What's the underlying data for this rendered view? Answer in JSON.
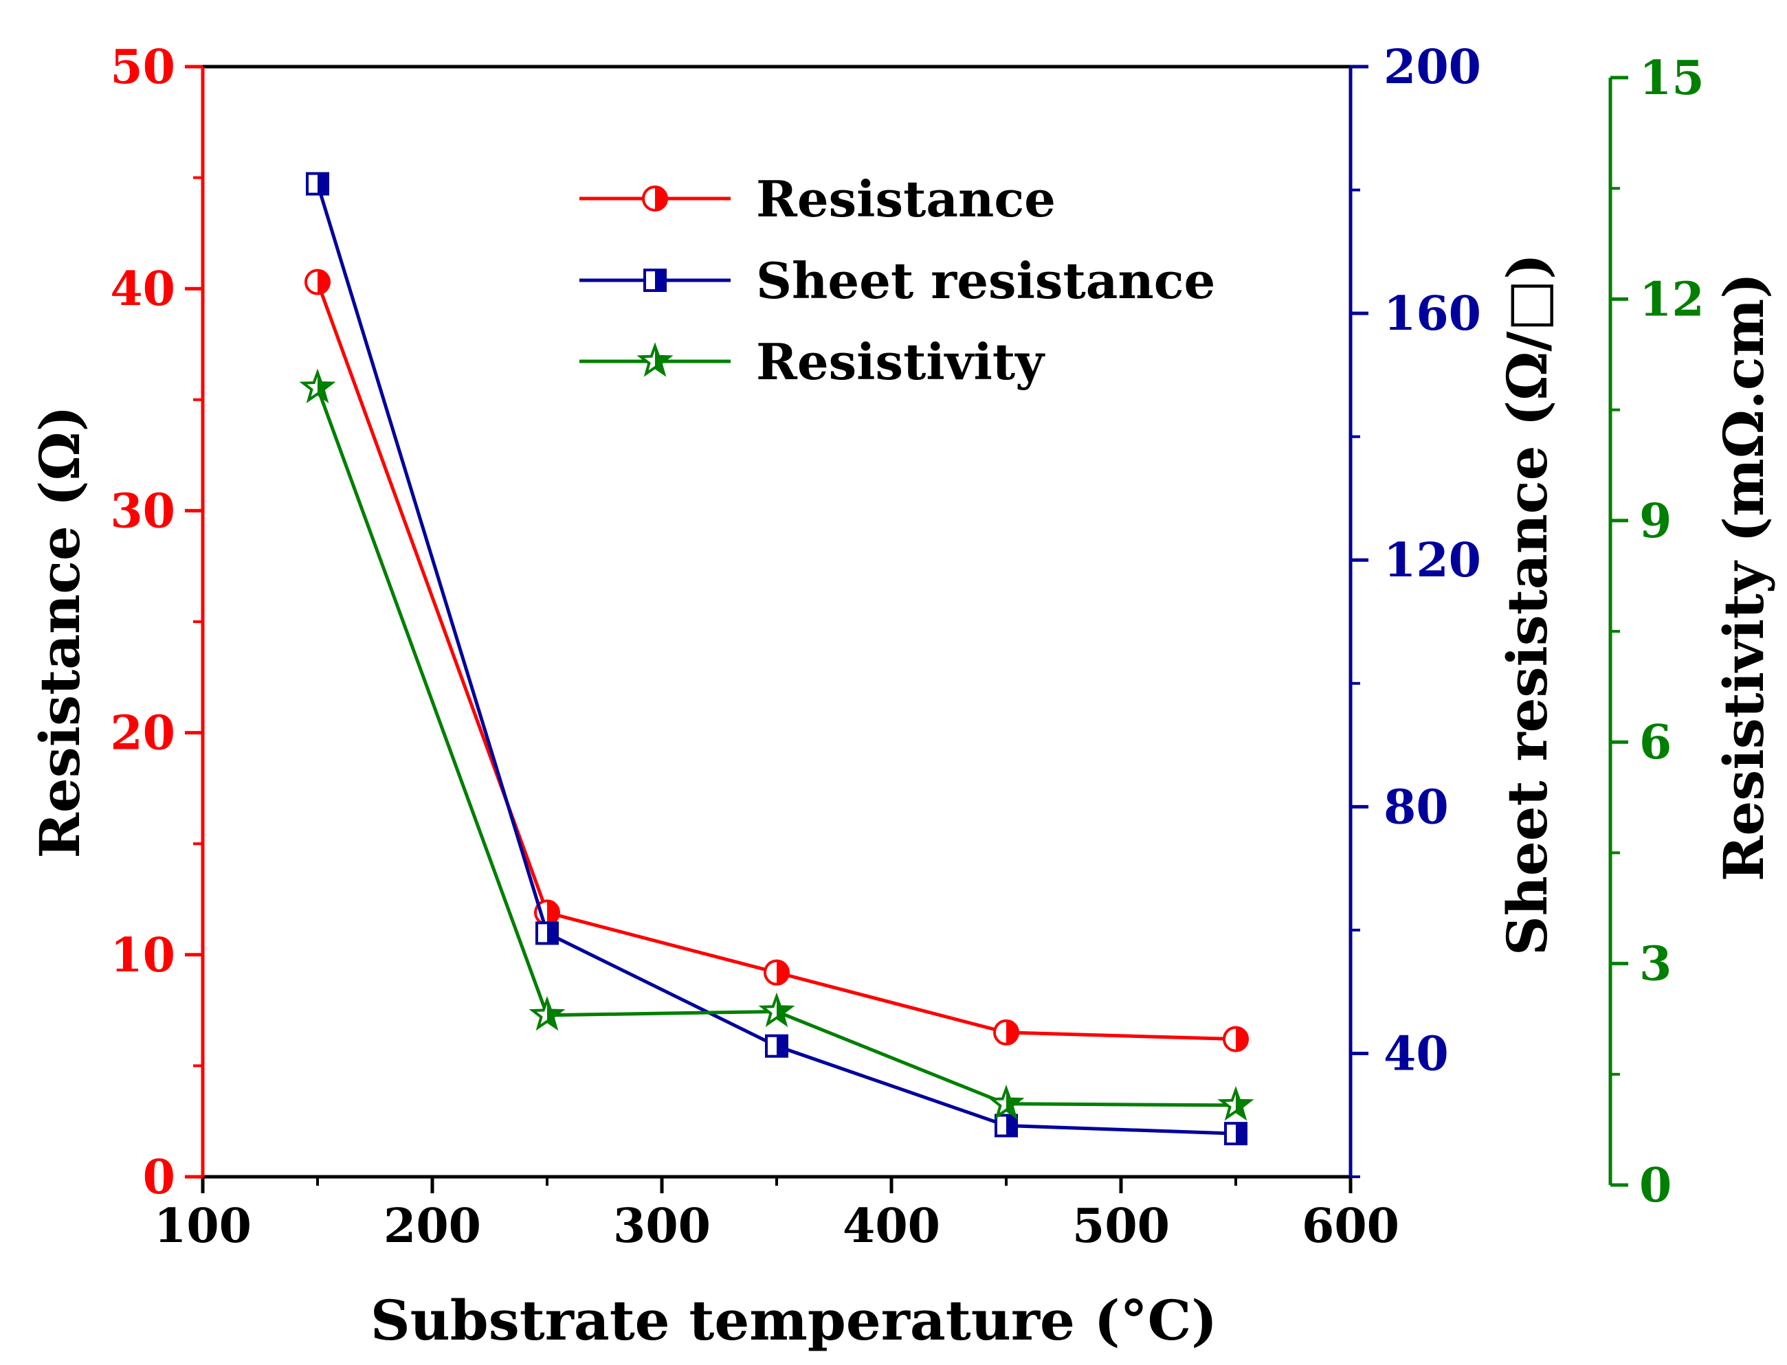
{
  "chart_data": {
    "type": "line",
    "title": "",
    "xlabel": "Substrate temperature (°C)",
    "x": [
      150,
      250,
      350,
      450,
      550
    ],
    "xlim": [
      100,
      600
    ],
    "xticks": [
      "100",
      "200",
      "300",
      "400",
      "500",
      "600"
    ],
    "series": [
      {
        "name": "Resistance",
        "axis": "left",
        "color": "#ff0000",
        "marker": "half-filled-circle",
        "values": [
          40.3,
          11.9,
          9.2,
          6.5,
          6.2
        ]
      },
      {
        "name": "Sheet resistance",
        "axis": "right1",
        "color": "#00009c",
        "marker": "half-filled-square",
        "values": [
          181,
          59.5,
          41.2,
          28.3,
          27.0
        ]
      },
      {
        "name": "Resistivity",
        "axis": "right2",
        "color": "#007f00",
        "marker": "half-filled-star",
        "values": [
          10.8,
          2.3,
          2.35,
          1.1,
          1.08
        ]
      }
    ],
    "axes": {
      "left": {
        "label": "Resistance (Ω)",
        "color": "#ff0000",
        "ylim": [
          0,
          50
        ],
        "ticks": [
          "0",
          "10",
          "20",
          "30",
          "40",
          "50"
        ]
      },
      "right1": {
        "label": "Sheet resistance (Ω/□)",
        "color": "#00009c",
        "ylim": [
          20,
          200
        ],
        "ticks": [
          "40",
          "80",
          "120",
          "160",
          "200"
        ]
      },
      "right2": {
        "label": "Resistivity (mΩ.cm)",
        "color": "#007f00",
        "ylim": [
          0,
          15
        ],
        "ticks": [
          "0",
          "3",
          "6",
          "9",
          "12",
          "15"
        ]
      }
    },
    "legend": {
      "placement": "top-center",
      "entries": [
        "Resistance",
        "Sheet resistance",
        "Resistivity"
      ]
    }
  }
}
